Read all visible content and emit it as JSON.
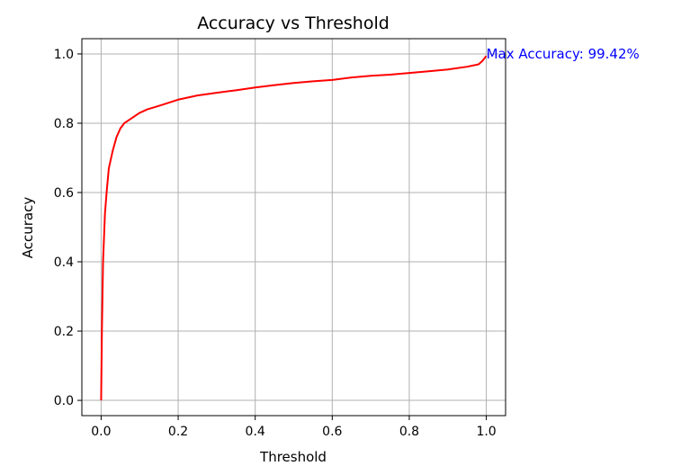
{
  "chart_data": {
    "type": "line",
    "title": "Accuracy vs Threshold",
    "xlabel": "Threshold",
    "ylabel": "Accuracy",
    "xlim": [
      -0.05,
      1.05
    ],
    "ylim": [
      -0.044,
      1.044
    ],
    "xticks": [
      0.0,
      0.2,
      0.4,
      0.6,
      0.8,
      1.0
    ],
    "xtick_labels": [
      "0.0",
      "0.2",
      "0.4",
      "0.6",
      "0.8",
      "1.0"
    ],
    "yticks": [
      0.0,
      0.2,
      0.4,
      0.6,
      0.8,
      1.0
    ],
    "ytick_labels": [
      "0.0",
      "0.2",
      "0.4",
      "0.6",
      "0.8",
      "1.0"
    ],
    "grid": true,
    "series": [
      {
        "color": "#ff0000",
        "x": [
          0.0,
          0.002,
          0.005,
          0.01,
          0.015,
          0.02,
          0.03,
          0.04,
          0.05,
          0.06,
          0.08,
          0.1,
          0.12,
          0.15,
          0.2,
          0.25,
          0.3,
          0.35,
          0.4,
          0.45,
          0.5,
          0.55,
          0.6,
          0.65,
          0.7,
          0.75,
          0.8,
          0.85,
          0.9,
          0.95,
          0.98,
          0.99,
          1.0
        ],
        "y": [
          0.0,
          0.2,
          0.4,
          0.54,
          0.61,
          0.67,
          0.72,
          0.76,
          0.785,
          0.8,
          0.815,
          0.83,
          0.84,
          0.85,
          0.868,
          0.88,
          0.888,
          0.895,
          0.903,
          0.91,
          0.916,
          0.921,
          0.925,
          0.932,
          0.937,
          0.94,
          0.945,
          0.95,
          0.955,
          0.963,
          0.97,
          0.98,
          0.9942
        ]
      }
    ],
    "annotation": {
      "text": "Max Accuracy: 99.42%",
      "x": 1.0,
      "y": 0.9942,
      "color": "#0000ff"
    }
  }
}
